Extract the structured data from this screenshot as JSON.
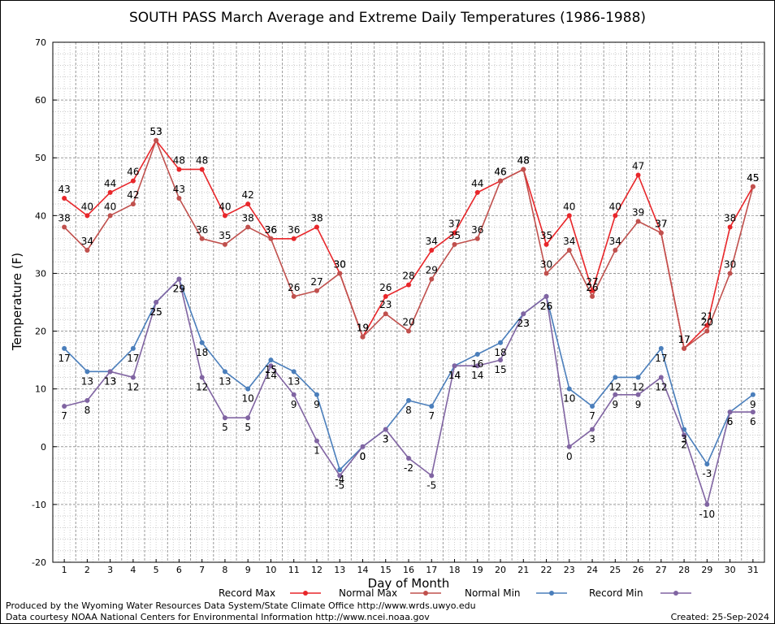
{
  "chart_data": {
    "type": "line",
    "title": "SOUTH PASS March Average and Extreme Daily Temperatures (1986-1988)",
    "xlabel": "Day of Month",
    "ylabel": "Temperature (F)",
    "ylim": [
      -20,
      70
    ],
    "yticks": [
      -20,
      -10,
      0,
      10,
      20,
      30,
      40,
      50,
      60,
      70
    ],
    "x": [
      1,
      2,
      3,
      4,
      5,
      6,
      7,
      8,
      9,
      10,
      11,
      12,
      13,
      14,
      15,
      16,
      17,
      18,
      19,
      20,
      21,
      22,
      23,
      24,
      25,
      26,
      27,
      28,
      29,
      30,
      31
    ],
    "grid": true,
    "legend_position": "bottom",
    "series": [
      {
        "name": "Record Max",
        "color": "#e8262a",
        "values": [
          43,
          40,
          44,
          46,
          53,
          48,
          48,
          40,
          42,
          36,
          36,
          38,
          30,
          19,
          26,
          28,
          34,
          37,
          44,
          46,
          48,
          35,
          40,
          27,
          40,
          47,
          37,
          17,
          21,
          38,
          45
        ]
      },
      {
        "name": "Normal Max",
        "color": "#c0504d",
        "values": [
          38,
          34,
          40,
          42,
          53,
          43,
          36,
          35,
          38,
          36,
          26,
          27,
          30,
          19,
          23,
          20,
          29,
          35,
          36,
          46,
          48,
          30,
          34,
          26,
          34,
          39,
          37,
          17,
          20,
          30,
          45
        ]
      },
      {
        "name": "Normal Min",
        "color": "#4a7ebb",
        "values": [
          17,
          13,
          13,
          17,
          25,
          29,
          18,
          13,
          10,
          15,
          13,
          9,
          -4,
          0,
          3,
          8,
          7,
          14,
          16,
          18,
          23,
          26,
          10,
          7,
          12,
          12,
          17,
          3,
          -3,
          6,
          9
        ]
      },
      {
        "name": "Record Min",
        "color": "#8064a2",
        "values": [
          7,
          8,
          13,
          12,
          25,
          29,
          12,
          5,
          5,
          14,
          9,
          1,
          -5,
          0,
          3,
          -2,
          -5,
          14,
          14,
          15,
          23,
          26,
          0,
          3,
          9,
          9,
          12,
          2,
          -10,
          6,
          6
        ]
      }
    ]
  },
  "footer": {
    "produced_by": "Produced by the Wyoming Water Resources Data System/State Climate Office http://www.wrds.uwyo.edu",
    "courtesy": "Data courtesy NOAA National Centers for Environmental Information http://www.ncei.noaa.gov",
    "created": "Created:  25-Sep-2024"
  }
}
